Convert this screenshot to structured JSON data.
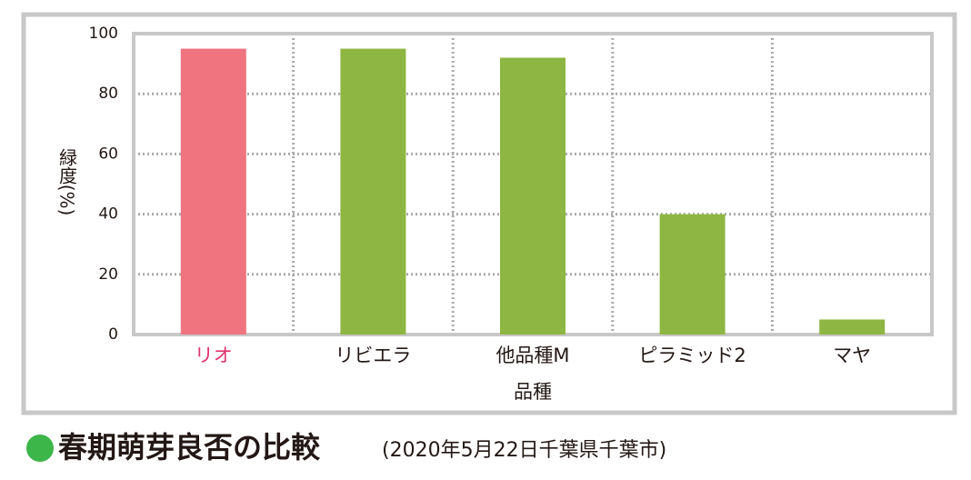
{
  "chart_data": {
    "type": "bar",
    "categories": [
      "リオ",
      "リビエラ",
      "他品種M",
      "ピラミッド2",
      "マヤ"
    ],
    "values": [
      95,
      95,
      92,
      40,
      5
    ],
    "colors": [
      "#f07380",
      "#8db642",
      "#8db642",
      "#8db642",
      "#8db642"
    ],
    "category_label_colors": [
      "#e0336e",
      "#231815",
      "#231815",
      "#231815",
      "#231815"
    ],
    "y_label": "緑度(%)",
    "x_label": "品種",
    "ylim": [
      0,
      100
    ],
    "yticks": [
      0,
      20,
      40,
      60,
      80,
      100
    ],
    "grid": true,
    "caption": "春期萌芽良否の比較",
    "caption_note": "(2020年5月22日千葉県千葉市)"
  }
}
